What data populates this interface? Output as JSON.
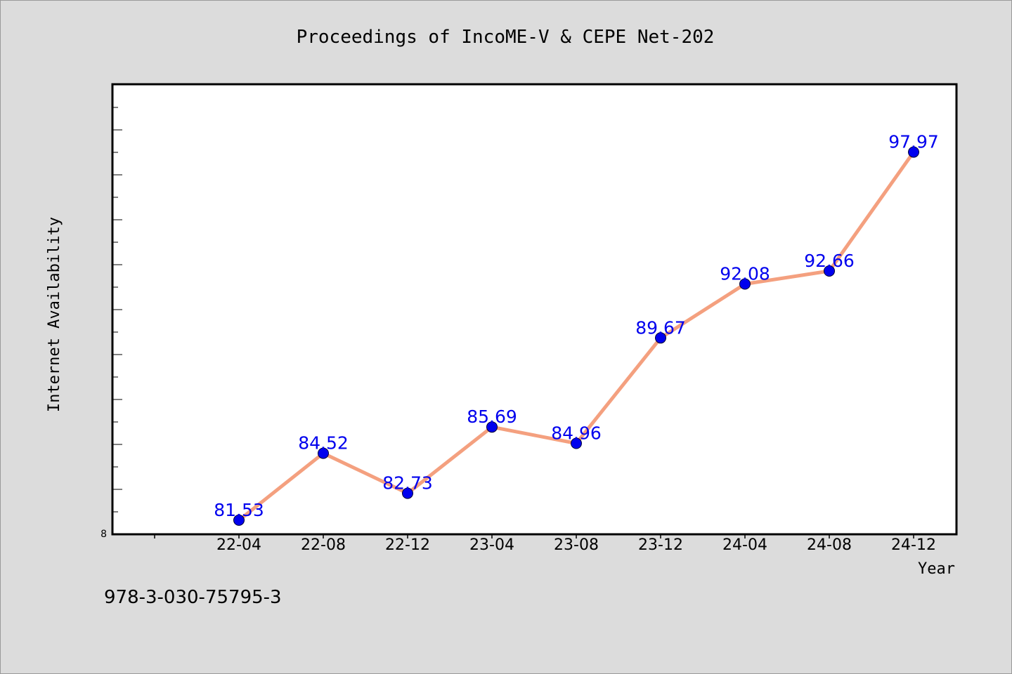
{
  "footer_text": "978-3-030-75795-3",
  "chart_data": {
    "type": "line",
    "title": "Proceedings of IncoME-V & CEPE Net-202",
    "xlabel": "Year",
    "ylabel": "Internet Availability",
    "categories": [
      "22-04",
      "22-08",
      "22-12",
      "23-04",
      "23-08",
      "23-12",
      "24-04",
      "24-08",
      "24-12"
    ],
    "series": [
      {
        "values": [
          81.53,
          84.52,
          82.73,
          85.69,
          84.96,
          89.67,
          92.08,
          92.66,
          97.97
        ]
      }
    ],
    "y_tick_label": "8",
    "ylim": [
      80.9,
      101.0
    ],
    "grid": false,
    "line_color": "#f4a07f",
    "marker_color": "#0000ee",
    "label_color": "#0000ee",
    "plot_background": "#ffffff",
    "page_background": "#dcdcdc"
  }
}
